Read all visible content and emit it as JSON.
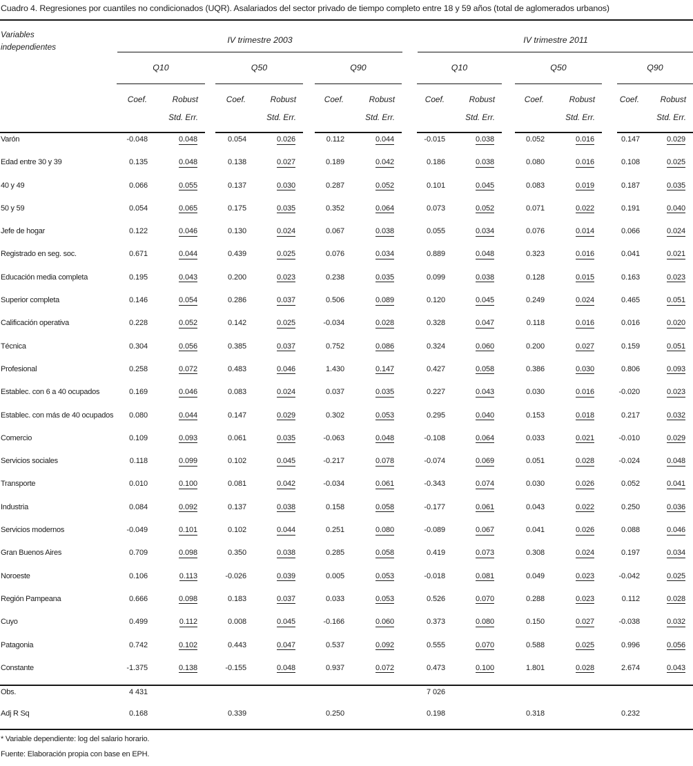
{
  "title": "Cuadro 4. Regresiones por cuantiles no condicionados (UQR). Asalariados del sector privado de tiempo completo entre 18 y 59 años (total de aglomerados urbanos)",
  "header": {
    "row_label_line1": "Variables",
    "row_label_line2": "independientes",
    "periods": [
      "IV trimestre 2003",
      "IV trimestre 2011"
    ],
    "quantiles": [
      "Q10",
      "Q50",
      "Q90",
      "Q10",
      "Q50",
      "Q90"
    ],
    "coef_label": "Coef.",
    "se_label_line1": "Robust",
    "se_label_line2": "Std. Err."
  },
  "rows": [
    {
      "label": "Varón",
      "values": [
        "-0.048",
        "0.048",
        "0.054",
        "0.026",
        "0.112",
        "0.044",
        "-0.015",
        "0.038",
        "0.052",
        "0.016",
        "0.147",
        "0.029"
      ]
    },
    {
      "label": "Edad entre 30 y 39",
      "values": [
        "0.135",
        "0.048",
        "0.138",
        "0.027",
        "0.189",
        "0.042",
        "0.186",
        "0.038",
        "0.080",
        "0.016",
        "0.108",
        "0.025"
      ]
    },
    {
      "label": "40 y 49",
      "values": [
        "0.066",
        "0.055",
        "0.137",
        "0.030",
        "0.287",
        "0.052",
        "0.101",
        "0.045",
        "0.083",
        "0.019",
        "0.187",
        "0.035"
      ]
    },
    {
      "label": "50 y 59",
      "values": [
        "0.054",
        "0.065",
        "0.175",
        "0.035",
        "0.352",
        "0.064",
        "0.073",
        "0.052",
        "0.071",
        "0.022",
        "0.191",
        "0.040"
      ]
    },
    {
      "label": "Jefe de hogar",
      "values": [
        "0.122",
        "0.046",
        "0.130",
        "0.024",
        "0.067",
        "0.038",
        "0.055",
        "0.034",
        "0.076",
        "0.014",
        "0.066",
        "0.024"
      ]
    },
    {
      "label": "Registrado en seg. soc.",
      "values": [
        "0.671",
        "0.044",
        "0.439",
        "0.025",
        "0.076",
        "0.034",
        "0.889",
        "0.048",
        "0.323",
        "0.016",
        "0.041",
        "0.021"
      ]
    },
    {
      "label": "Educación media completa",
      "values": [
        "0.195",
        "0.043",
        "0.200",
        "0.023",
        "0.238",
        "0.035",
        "0.099",
        "0.038",
        "0.128",
        "0.015",
        "0.163",
        "0.023"
      ]
    },
    {
      "label": "Superior completa",
      "values": [
        "0.146",
        "0.054",
        "0.286",
        "0.037",
        "0.506",
        "0.089",
        "0.120",
        "0.045",
        "0.249",
        "0.024",
        "0.465",
        "0.051"
      ]
    },
    {
      "label": "Calificación operativa",
      "values": [
        "0.228",
        "0.052",
        "0.142",
        "0.025",
        "-0.034",
        "0.028",
        "0.328",
        "0.047",
        "0.118",
        "0.016",
        "0.016",
        "0.020"
      ]
    },
    {
      "label": "Técnica",
      "values": [
        "0.304",
        "0.056",
        "0.385",
        "0.037",
        "0.752",
        "0.086",
        "0.324",
        "0.060",
        "0.200",
        "0.027",
        "0.159",
        "0.051"
      ]
    },
    {
      "label": "Profesional",
      "values": [
        "0.258",
        "0.072",
        "0.483",
        "0.046",
        "1.430",
        "0.147",
        "0.427",
        "0.058",
        "0.386",
        "0.030",
        "0.806",
        "0.093"
      ]
    },
    {
      "label": "Establec. con 6 a 40 ocupados",
      "values": [
        "0.169",
        "0.046",
        "0.083",
        "0.024",
        "0.037",
        "0.035",
        "0.227",
        "0.043",
        "0.030",
        "0.016",
        "-0.020",
        "0.023"
      ]
    },
    {
      "label": "Establec. con más de 40 ocupados",
      "values": [
        "0.080",
        "0.044",
        "0.147",
        "0.029",
        "0.302",
        "0.053",
        "0.295",
        "0.040",
        "0.153",
        "0.018",
        "0.217",
        "0.032"
      ]
    },
    {
      "label": "Comercio",
      "values": [
        "0.109",
        "0.093",
        "0.061",
        "0.035",
        "-0.063",
        "0.048",
        "-0.108",
        "0.064",
        "0.033",
        "0.021",
        "-0.010",
        "0.029"
      ]
    },
    {
      "label": "Servicios sociales",
      "values": [
        "0.118",
        "0.099",
        "0.102",
        "0.045",
        "-0.217",
        "0.078",
        "-0.074",
        "0.069",
        "0.051",
        "0.028",
        "-0.024",
        "0.048"
      ]
    },
    {
      "label": "Transporte",
      "values": [
        "0.010",
        "0.100",
        "0.081",
        "0.042",
        "-0.034",
        "0.061",
        "-0.343",
        "0.074",
        "0.030",
        "0.026",
        "0.052",
        "0.041"
      ]
    },
    {
      "label": "Industria",
      "values": [
        "0.084",
        "0.092",
        "0.137",
        "0.038",
        "0.158",
        "0.058",
        "-0.177",
        "0.061",
        "0.043",
        "0.022",
        "0.250",
        "0.036"
      ]
    },
    {
      "label": "Servicios modernos",
      "values": [
        "-0.049",
        "0.101",
        "0.102",
        "0.044",
        "0.251",
        "0.080",
        "-0.089",
        "0.067",
        "0.041",
        "0.026",
        "0.088",
        "0.046"
      ]
    },
    {
      "label": "Gran Buenos Aires",
      "values": [
        "0.709",
        "0.098",
        "0.350",
        "0.038",
        "0.285",
        "0.058",
        "0.419",
        "0.073",
        "0.308",
        "0.024",
        "0.197",
        "0.034"
      ]
    },
    {
      "label": "Noroeste",
      "values": [
        "0.106",
        "0.113",
        "-0.026",
        "0.039",
        "0.005",
        "0.053",
        "-0.018",
        "0.081",
        "0.049",
        "0.023",
        "-0.042",
        "0.025"
      ]
    },
    {
      "label": "Región Pampeana",
      "values": [
        "0.666",
        "0.098",
        "0.183",
        "0.037",
        "0.033",
        "0.053",
        "0.526",
        "0.070",
        "0.288",
        "0.023",
        "0.112",
        "0.028"
      ]
    },
    {
      "label": "Cuyo",
      "values": [
        "0.499",
        "0.112",
        "0.008",
        "0.045",
        "-0.166",
        "0.060",
        "0.373",
        "0.080",
        "0.150",
        "0.027",
        "-0.038",
        "0.032"
      ]
    },
    {
      "label": "Patagonia",
      "values": [
        "0.742",
        "0.102",
        "0.443",
        "0.047",
        "0.537",
        "0.092",
        "0.555",
        "0.070",
        "0.588",
        "0.025",
        "0.996",
        "0.056"
      ]
    },
    {
      "label": "Constante",
      "values": [
        "-1.375",
        "0.138",
        "-0.155",
        "0.048",
        "0.937",
        "0.072",
        "0.473",
        "0.100",
        "1.801",
        "0.028",
        "2.674",
        "0.043"
      ]
    }
  ],
  "summary_rows": [
    {
      "label": "Obs.",
      "values": [
        "4 431",
        "",
        "",
        "7 026",
        "",
        ""
      ]
    },
    {
      "label": "Adj R Sq",
      "values": [
        "0.168",
        "0.339",
        "0.250",
        "0.198",
        "0.318",
        "0.232"
      ]
    }
  ],
  "footnotes": [
    "* Variable dependiente: log del salario horario.",
    "Fuente: Elaboración propia con base en EPH."
  ]
}
